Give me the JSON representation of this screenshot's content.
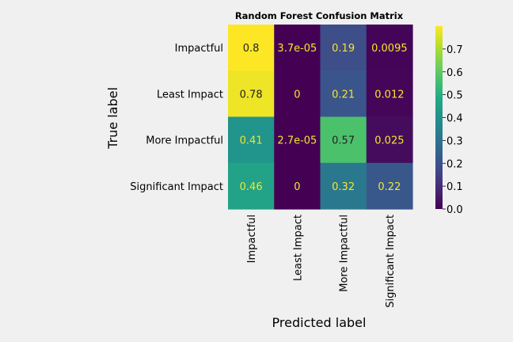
{
  "chart_data": {
    "type": "heatmap",
    "title": "Random Forest Confusion Matrix",
    "xlabel": "Predicted label",
    "ylabel": "True label",
    "x_categories": [
      "Impactful",
      "Least Impact",
      "More Impactful",
      "Significant Impact"
    ],
    "y_categories": [
      "Impactful",
      "Least Impact",
      "More Impactful",
      "Significant Impact"
    ],
    "values": [
      [
        0.8,
        3.7e-05,
        0.19,
        0.0095
      ],
      [
        0.78,
        0,
        0.21,
        0.012
      ],
      [
        0.41,
        2.7e-05,
        0.57,
        0.025
      ],
      [
        0.46,
        0,
        0.32,
        0.22
      ]
    ],
    "cell_labels": [
      [
        "0.8",
        "3.7e-05",
        "0.19",
        "0.0095"
      ],
      [
        "0.78",
        "0",
        "0.21",
        "0.012"
      ],
      [
        "0.41",
        "2.7e-05",
        "0.57",
        "0.025"
      ],
      [
        "0.46",
        "0",
        "0.32",
        "0.22"
      ]
    ],
    "colormap": "viridis",
    "colorbar": {
      "range": [
        0,
        0.8
      ],
      "ticks": [
        0.0,
        0.1,
        0.2,
        0.3,
        0.4,
        0.5,
        0.6,
        0.7
      ],
      "tick_labels": [
        "0.0",
        "0.1",
        "0.2",
        "0.3",
        "0.4",
        "0.5",
        "0.6",
        "0.7"
      ]
    },
    "grid": false,
    "background_color": "#f0f0f0"
  }
}
